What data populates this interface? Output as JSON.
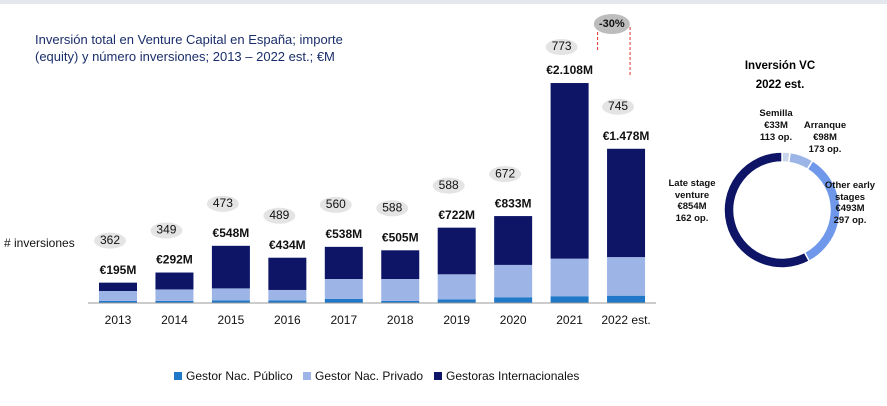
{
  "chart_data": [
    {
      "type": "stacked-bar",
      "title": "Inversión total en Venture Capital en España; importe (equity) y número inversiones; 2013 – 2022 est.; €M",
      "categories": [
        "2013",
        "2014",
        "2015",
        "2016",
        "2017",
        "2018",
        "2019",
        "2020",
        "2021",
        "2022 est."
      ],
      "series": [
        {
          "name": "Gestor Nac. Público",
          "color": "#1f78c8",
          "values": [
            20,
            20,
            25,
            25,
            40,
            20,
            35,
            55,
            65,
            70
          ]
        },
        {
          "name": "Gestor Nac. Privado",
          "color": "#9db4e6",
          "values": [
            95,
            110,
            115,
            100,
            190,
            210,
            240,
            310,
            360,
            370
          ]
        },
        {
          "name": "Gestoras Internacionales",
          "color": "#0e1566",
          "values": [
            80,
            162,
            408,
            309,
            308,
            275,
            447,
            468,
            1683,
            1038
          ]
        }
      ],
      "totals": {
        "values": [
          195,
          292,
          548,
          434,
          538,
          505,
          722,
          833,
          2108,
          1478
        ],
        "value_labels": [
          "€195M",
          "€292M",
          "€548M",
          "€434M",
          "€538M",
          "€505M",
          "€722M",
          "€833M",
          "€2.108M",
          "€1.478M"
        ]
      },
      "investments": {
        "label": "# inversiones",
        "values": [
          362,
          349,
          473,
          489,
          560,
          588,
          588,
          672,
          773,
          745
        ]
      },
      "annotation": "-30%",
      "ylim": [
        0,
        2300
      ],
      "legend": "bottom"
    },
    {
      "type": "donut",
      "title": "Inversión VC 2022 est.",
      "categories": [
        "Semilla",
        "Arranque",
        "Other early stages",
        "Late stage venture"
      ],
      "values": [
        33,
        98,
        493,
        854
      ],
      "value_labels": [
        "€33M",
        "€98M",
        "€493M",
        "€854M"
      ],
      "operations": [
        "113 op.",
        "173 op.",
        "297 op.",
        "162 op."
      ],
      "colors": [
        "#c9d5e8",
        "#9bb6e6",
        "#6f98ea",
        "#0e1566"
      ]
    }
  ]
}
